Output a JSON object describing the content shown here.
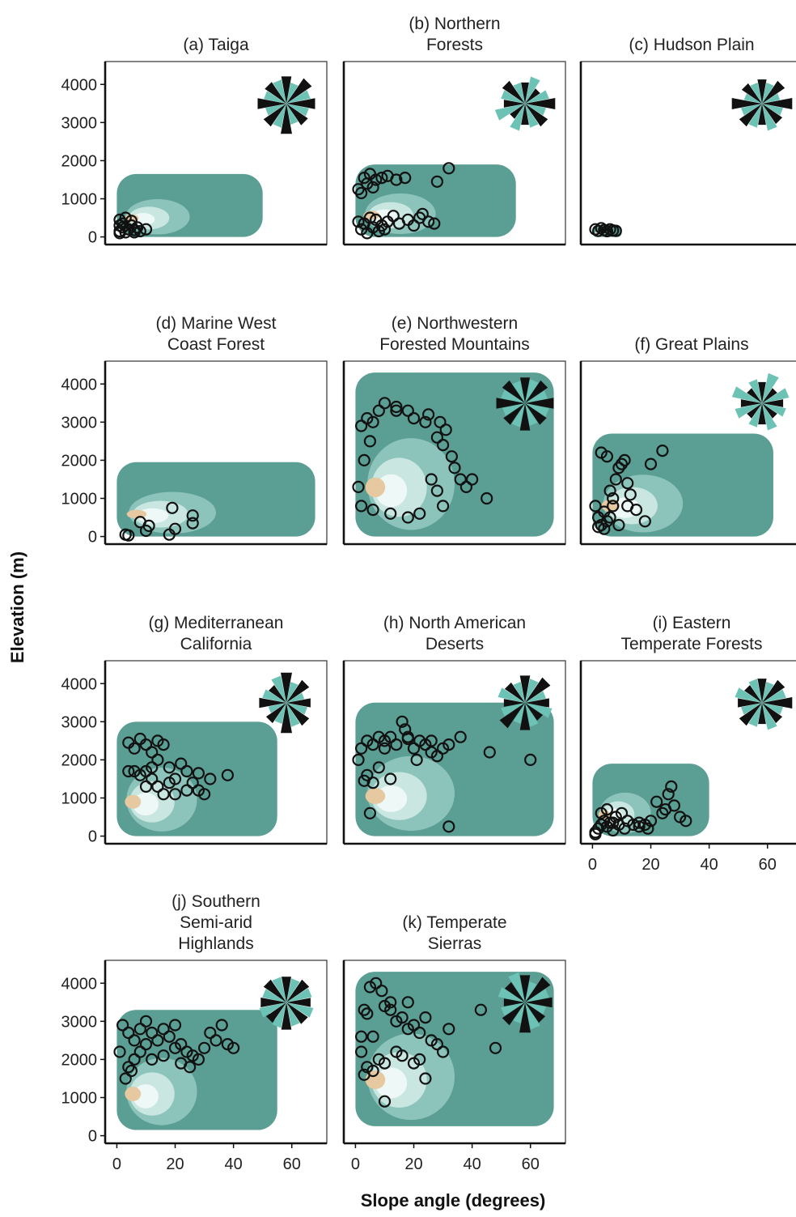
{
  "axes": {
    "ylabel": "Elevation (m)",
    "xlabel": "Slope angle (degrees)",
    "y_ticks": [
      0,
      1000,
      2000,
      3000,
      4000
    ],
    "x_ticks": [
      0,
      20,
      40,
      60
    ],
    "xlim": [
      -4,
      72
    ],
    "ylim": [
      -200,
      4600
    ]
  },
  "colors": {
    "density_outer": "#5b9e94",
    "density_mid": "#8cc4bb",
    "density_light": "#c9e6e1",
    "density_pale": "#eef8f6",
    "density_tan": "#e6c9a0",
    "density_brown": "#c88a4a",
    "points": "#111111",
    "rose_teal": "#6cc2b5",
    "rose_black": "#111111"
  },
  "chart_data": [
    {
      "type": "scatter",
      "title": "(a)   Taiga",
      "xlabel": "",
      "ylabel": "",
      "density_range": {
        "x": [
          0,
          50
        ],
        "y": [
          0,
          1650
        ]
      },
      "points": [
        [
          1,
          450
        ],
        [
          3,
          500
        ],
        [
          5,
          420
        ],
        [
          1,
          300
        ],
        [
          2,
          250
        ],
        [
          4,
          200
        ],
        [
          6,
          180
        ],
        [
          1,
          150
        ],
        [
          3,
          120
        ],
        [
          7,
          250
        ],
        [
          8,
          150
        ],
        [
          10,
          200
        ],
        [
          2,
          350
        ],
        [
          5,
          300
        ],
        [
          6,
          120
        ],
        [
          1,
          100
        ]
      ]
    },
    {
      "type": "scatter",
      "title": "(b) Northern\nForests",
      "xlabel": "",
      "ylabel": "",
      "density_range": {
        "x": [
          0,
          55
        ],
        "y": [
          0,
          1900
        ]
      },
      "points": [
        [
          1,
          1250
        ],
        [
          3,
          1550
        ],
        [
          5,
          1650
        ],
        [
          7,
          1500
        ],
        [
          9,
          1550
        ],
        [
          11,
          1600
        ],
        [
          14,
          1500
        ],
        [
          17,
          1550
        ],
        [
          4,
          1400
        ],
        [
          6,
          1300
        ],
        [
          2,
          1150
        ],
        [
          28,
          1450
        ],
        [
          32,
          1800
        ],
        [
          1,
          400
        ],
        [
          3,
          350
        ],
        [
          5,
          500
        ],
        [
          7,
          450
        ],
        [
          9,
          300
        ],
        [
          11,
          400
        ],
        [
          13,
          550
        ],
        [
          15,
          350
        ],
        [
          18,
          450
        ],
        [
          20,
          300
        ],
        [
          22,
          500
        ],
        [
          25,
          400
        ],
        [
          27,
          350
        ],
        [
          23,
          600
        ],
        [
          2,
          200
        ],
        [
          4,
          100
        ],
        [
          6,
          250
        ],
        [
          8,
          150
        ],
        [
          10,
          200
        ]
      ]
    },
    {
      "type": "scatter",
      "title": "(c)  Hudson Plain",
      "xlabel": "",
      "ylabel": "",
      "density_range": {
        "x": [
          0,
          10
        ],
        "y": [
          0,
          300
        ]
      },
      "points": [
        [
          1,
          200
        ],
        [
          2,
          160
        ],
        [
          3,
          230
        ],
        [
          4,
          180
        ],
        [
          5,
          150
        ],
        [
          6,
          200
        ],
        [
          7,
          170
        ],
        [
          8,
          160
        ]
      ]
    },
    {
      "type": "scatter",
      "title": "(d) Marine West\nCoast Forest",
      "xlabel": "",
      "ylabel": "",
      "density_range": {
        "x": [
          0,
          68
        ],
        "y": [
          0,
          1950
        ]
      },
      "points": [
        [
          3,
          50
        ],
        [
          4,
          30
        ],
        [
          8,
          380
        ],
        [
          10,
          150
        ],
        [
          11,
          280
        ],
        [
          18,
          50
        ],
        [
          19,
          750
        ],
        [
          20,
          200
        ],
        [
          26,
          550
        ],
        [
          26,
          350
        ]
      ]
    },
    {
      "type": "scatter",
      "title": "(e)  Northwestern\nForested Mountains",
      "xlabel": "",
      "ylabel": "",
      "density_range": {
        "x": [
          0,
          68
        ],
        "y": [
          0,
          4300
        ]
      },
      "points": [
        [
          2,
          2900
        ],
        [
          4,
          3100
        ],
        [
          6,
          3000
        ],
        [
          8,
          3300
        ],
        [
          10,
          3500
        ],
        [
          14,
          3400
        ],
        [
          18,
          3300
        ],
        [
          20,
          3100
        ],
        [
          24,
          3000
        ],
        [
          28,
          2600
        ],
        [
          30,
          2400
        ],
        [
          34,
          1800
        ],
        [
          36,
          1500
        ],
        [
          38,
          1300
        ],
        [
          40,
          1500
        ],
        [
          45,
          1000
        ],
        [
          26,
          1500
        ],
        [
          28,
          1200
        ],
        [
          30,
          800
        ],
        [
          22,
          600
        ],
        [
          18,
          500
        ],
        [
          12,
          600
        ],
        [
          6,
          700
        ],
        [
          2,
          800
        ],
        [
          1,
          1300
        ],
        [
          3,
          2000
        ],
        [
          5,
          2500
        ],
        [
          25,
          3200
        ],
        [
          29,
          3000
        ],
        [
          33,
          2100
        ],
        [
          31,
          2800
        ],
        [
          14,
          3300
        ]
      ]
    },
    {
      "type": "scatter",
      "title": "(f)  Great Plains",
      "xlabel": "",
      "ylabel": "",
      "density_range": {
        "x": [
          0,
          62
        ],
        "y": [
          0,
          2700
        ]
      },
      "points": [
        [
          1,
          800
        ],
        [
          2,
          500
        ],
        [
          3,
          300
        ],
        [
          4,
          200
        ],
        [
          5,
          400
        ],
        [
          6,
          1200
        ],
        [
          7,
          800
        ],
        [
          8,
          1500
        ],
        [
          9,
          1800
        ],
        [
          10,
          1900
        ],
        [
          11,
          2000
        ],
        [
          12,
          1400
        ],
        [
          13,
          1100
        ],
        [
          15,
          700
        ],
        [
          18,
          400
        ],
        [
          20,
          1900
        ],
        [
          3,
          2200
        ],
        [
          5,
          2100
        ],
        [
          2,
          250
        ],
        [
          4,
          650
        ],
        [
          7,
          1000
        ],
        [
          9,
          300
        ],
        [
          6,
          500
        ],
        [
          12,
          800
        ],
        [
          24,
          2250
        ]
      ]
    },
    {
      "type": "scatter",
      "title": "(g) Mediterranean\nCalifornia",
      "xlabel": "",
      "ylabel": "",
      "density_range": {
        "x": [
          0,
          55
        ],
        "y": [
          0,
          3000
        ]
      },
      "points": [
        [
          4,
          2450
        ],
        [
          6,
          2300
        ],
        [
          8,
          2550
        ],
        [
          10,
          2400
        ],
        [
          12,
          2200
        ],
        [
          14,
          2500
        ],
        [
          16,
          2400
        ],
        [
          6,
          1700
        ],
        [
          8,
          1600
        ],
        [
          10,
          1700
        ],
        [
          12,
          1500
        ],
        [
          14,
          1300
        ],
        [
          16,
          1100
        ],
        [
          18,
          1800
        ],
        [
          20,
          1500
        ],
        [
          22,
          1900
        ],
        [
          24,
          1700
        ],
        [
          26,
          1400
        ],
        [
          28,
          1200
        ],
        [
          30,
          1100
        ],
        [
          32,
          1500
        ],
        [
          38,
          1600
        ],
        [
          10,
          1300
        ],
        [
          12,
          1800
        ],
        [
          18,
          1400
        ],
        [
          24,
          1200
        ],
        [
          20,
          1100
        ],
        [
          28,
          1650
        ],
        [
          14,
          2000
        ],
        [
          4,
          1700
        ]
      ]
    },
    {
      "type": "scatter",
      "title": "(h) North American\nDeserts",
      "xlabel": "",
      "ylabel": "",
      "density_range": {
        "x": [
          0,
          68
        ],
        "y": [
          0,
          3500
        ]
      },
      "points": [
        [
          1,
          2000
        ],
        [
          2,
          2300
        ],
        [
          4,
          2500
        ],
        [
          6,
          2400
        ],
        [
          8,
          2600
        ],
        [
          10,
          2500
        ],
        [
          12,
          2600
        ],
        [
          14,
          2400
        ],
        [
          16,
          3000
        ],
        [
          17,
          2800
        ],
        [
          18,
          2550
        ],
        [
          20,
          2300
        ],
        [
          22,
          2500
        ],
        [
          24,
          2400
        ],
        [
          26,
          2200
        ],
        [
          28,
          2100
        ],
        [
          30,
          2300
        ],
        [
          32,
          2400
        ],
        [
          36,
          2600
        ],
        [
          46,
          2200
        ],
        [
          60,
          2000
        ],
        [
          3,
          1450
        ],
        [
          4,
          1600
        ],
        [
          6,
          1400
        ],
        [
          8,
          1800
        ],
        [
          12,
          1500
        ],
        [
          5,
          600
        ],
        [
          32,
          250
        ],
        [
          10,
          2300
        ],
        [
          18,
          2600
        ],
        [
          26,
          2500
        ],
        [
          21,
          2000
        ]
      ]
    },
    {
      "type": "scatter",
      "title": "(i)  Eastern\nTemperate Forests",
      "xlabel": "",
      "ylabel": "",
      "density_range": {
        "x": [
          0,
          40
        ],
        "y": [
          0,
          1900
        ]
      },
      "points": [
        [
          1,
          100
        ],
        [
          2,
          200
        ],
        [
          3,
          300
        ],
        [
          4,
          400
        ],
        [
          5,
          250
        ],
        [
          6,
          350
        ],
        [
          7,
          150
        ],
        [
          8,
          500
        ],
        [
          9,
          300
        ],
        [
          10,
          600
        ],
        [
          11,
          200
        ],
        [
          12,
          400
        ],
        [
          14,
          300
        ],
        [
          16,
          250
        ],
        [
          18,
          300
        ],
        [
          20,
          400
        ],
        [
          22,
          900
        ],
        [
          24,
          600
        ],
        [
          25,
          700
        ],
        [
          26,
          1100
        ],
        [
          27,
          1300
        ],
        [
          28,
          800
        ],
        [
          30,
          500
        ],
        [
          32,
          400
        ],
        [
          1,
          50
        ],
        [
          3,
          600
        ],
        [
          5,
          700
        ],
        [
          7,
          350
        ],
        [
          16,
          350
        ],
        [
          19,
          200
        ]
      ]
    },
    {
      "type": "scatter",
      "title": "(j) Southern\nSemi-arid\nHighlands",
      "xlabel": "",
      "ylabel": "",
      "density_range": {
        "x": [
          0,
          55
        ],
        "y": [
          150,
          3300
        ]
      },
      "points": [
        [
          2,
          2900
        ],
        [
          4,
          2700
        ],
        [
          6,
          2500
        ],
        [
          8,
          2800
        ],
        [
          10,
          3000
        ],
        [
          12,
          2700
        ],
        [
          14,
          2500
        ],
        [
          16,
          2800
        ],
        [
          18,
          2600
        ],
        [
          20,
          2900
        ],
        [
          22,
          2400
        ],
        [
          24,
          2200
        ],
        [
          26,
          2100
        ],
        [
          28,
          2000
        ],
        [
          30,
          2300
        ],
        [
          32,
          2700
        ],
        [
          34,
          2500
        ],
        [
          36,
          2900
        ],
        [
          38,
          2400
        ],
        [
          40,
          2300
        ],
        [
          3,
          1500
        ],
        [
          4,
          1800
        ],
        [
          5,
          1700
        ],
        [
          6,
          2000
        ],
        [
          8,
          2200
        ],
        [
          10,
          2400
        ],
        [
          12,
          2000
        ],
        [
          16,
          2100
        ],
        [
          20,
          2300
        ],
        [
          22,
          1900
        ],
        [
          25,
          1800
        ],
        [
          1,
          2200
        ]
      ]
    },
    {
      "type": "scatter",
      "title": "(k) Temperate\nSierras",
      "xlabel": "",
      "ylabel": "",
      "density_range": {
        "x": [
          0,
          68
        ],
        "y": [
          250,
          4300
        ]
      },
      "points": [
        [
          2,
          2600
        ],
        [
          3,
          3300
        ],
        [
          4,
          3200
        ],
        [
          5,
          3900
        ],
        [
          7,
          4000
        ],
        [
          9,
          3800
        ],
        [
          10,
          3400
        ],
        [
          12,
          3300
        ],
        [
          14,
          3000
        ],
        [
          16,
          3100
        ],
        [
          18,
          2800
        ],
        [
          20,
          2900
        ],
        [
          22,
          2700
        ],
        [
          24,
          3100
        ],
        [
          26,
          2500
        ],
        [
          28,
          2400
        ],
        [
          30,
          2200
        ],
        [
          32,
          2800
        ],
        [
          48,
          2300
        ],
        [
          43,
          3300
        ],
        [
          2,
          2200
        ],
        [
          3,
          1600
        ],
        [
          4,
          1800
        ],
        [
          6,
          1700
        ],
        [
          8,
          2000
        ],
        [
          10,
          1900
        ],
        [
          14,
          2200
        ],
        [
          16,
          2100
        ],
        [
          20,
          1900
        ],
        [
          22,
          2000
        ],
        [
          24,
          1500
        ],
        [
          10,
          900
        ],
        [
          12,
          3500
        ],
        [
          18,
          3500
        ],
        [
          6,
          2600
        ]
      ]
    }
  ]
}
